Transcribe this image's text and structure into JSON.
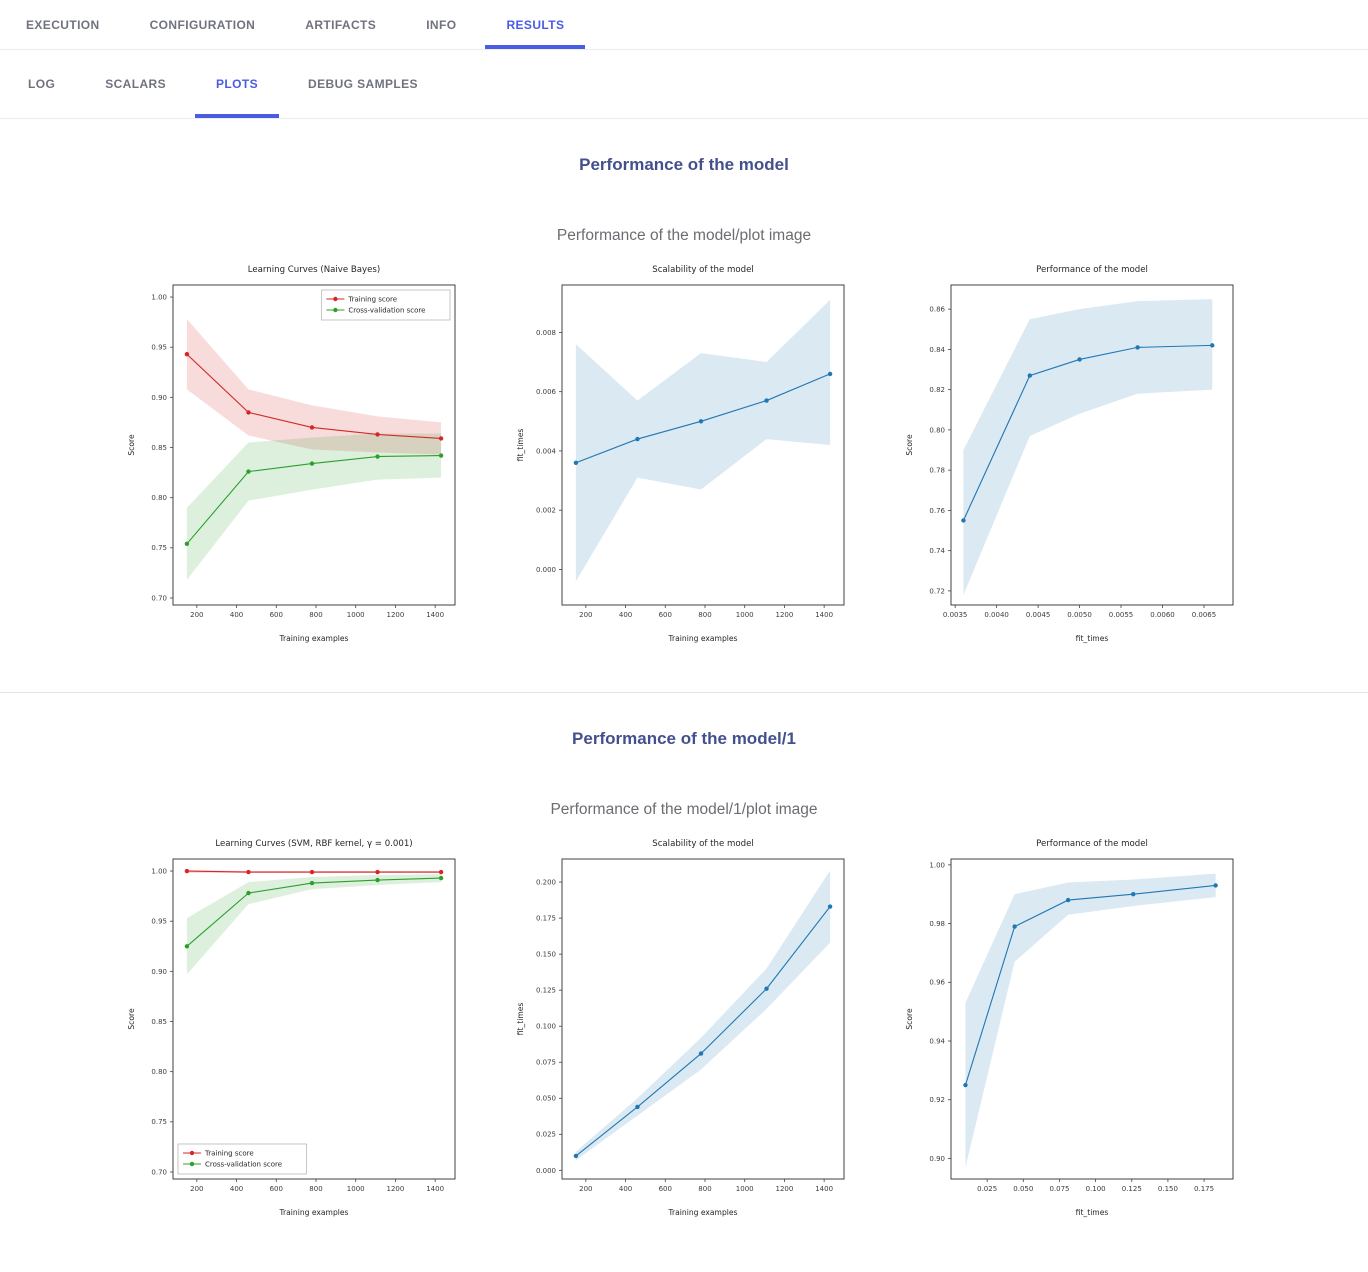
{
  "tabs_primary": [
    {
      "label": "EXECUTION",
      "active": false
    },
    {
      "label": "CONFIGURATION",
      "active": false
    },
    {
      "label": "ARTIFACTS",
      "active": false
    },
    {
      "label": "INFO",
      "active": false
    },
    {
      "label": "RESULTS",
      "active": true
    }
  ],
  "tabs_secondary": [
    {
      "label": "LOG",
      "active": false
    },
    {
      "label": "SCALARS",
      "active": false
    },
    {
      "label": "PLOTS",
      "active": true
    },
    {
      "label": "DEBUG SAMPLES",
      "active": false
    }
  ],
  "sections": [
    {
      "title": "Performance of the model",
      "subtitle": "Performance of the model/plot image"
    },
    {
      "title": "Performance of the model/1",
      "subtitle": "Performance of the model/1/plot image"
    }
  ],
  "colors": {
    "accent": "#4a5ce4",
    "heading": "#44508e",
    "training_score": "#d62728",
    "cross_validation_score": "#2ca02c",
    "single_series": "#1f77b4"
  },
  "chart_data": [
    {
      "type": "line",
      "title": "Learning Curves (Naive Bayes)",
      "xlabel": "Training examples",
      "ylabel": "Score",
      "xlim": [
        80,
        1500
      ],
      "ylim": [
        0.693,
        1.012
      ],
      "xticks": [
        "200",
        "400",
        "600",
        "800",
        "1000",
        "1200",
        "1400"
      ],
      "yticks": [
        "0.70",
        "0.75",
        "0.80",
        "0.85",
        "0.90",
        "0.95",
        "1.00"
      ],
      "legend": "top-right",
      "series": [
        {
          "name": "Training score",
          "color": "#d62728",
          "x": [
            150,
            460,
            780,
            1110,
            1430
          ],
          "y": [
            0.943,
            0.885,
            0.87,
            0.863,
            0.859
          ],
          "band_lower": [
            0.908,
            0.862,
            0.848,
            0.845,
            0.843
          ],
          "band_upper": [
            0.978,
            0.908,
            0.892,
            0.881,
            0.875
          ]
        },
        {
          "name": "Cross-validation score",
          "color": "#2ca02c",
          "x": [
            150,
            460,
            780,
            1110,
            1430
          ],
          "y": [
            0.754,
            0.826,
            0.834,
            0.841,
            0.842
          ],
          "band_lower": [
            0.718,
            0.797,
            0.808,
            0.818,
            0.82
          ],
          "band_upper": [
            0.79,
            0.855,
            0.86,
            0.864,
            0.864
          ]
        }
      ]
    },
    {
      "type": "line",
      "title": "Scalability of the model",
      "xlabel": "Training examples",
      "ylabel": "fit_times",
      "xlim": [
        80,
        1500
      ],
      "ylim": [
        -0.0012,
        0.0096
      ],
      "xticks": [
        "200",
        "400",
        "600",
        "800",
        "1000",
        "1200",
        "1400"
      ],
      "yticks": [
        "0.000",
        "0.002",
        "0.004",
        "0.006",
        "0.008"
      ],
      "legend": null,
      "series": [
        {
          "name": "fit_times",
          "color": "#1f77b4",
          "x": [
            150,
            460,
            780,
            1110,
            1430
          ],
          "y": [
            0.0036,
            0.0044,
            0.005,
            0.0057,
            0.0066
          ],
          "band_lower": [
            -0.0004,
            0.0031,
            0.0027,
            0.0044,
            0.0042
          ],
          "band_upper": [
            0.0076,
            0.0057,
            0.0073,
            0.007,
            0.0091
          ]
        }
      ]
    },
    {
      "type": "line",
      "title": "Performance of the model",
      "xlabel": "fit_times",
      "ylabel": "Score",
      "xlim": [
        0.00345,
        0.00685
      ],
      "ylim": [
        0.713,
        0.872
      ],
      "xticks": [
        "0.0035",
        "0.0040",
        "0.0045",
        "0.0050",
        "0.0055",
        "0.0060",
        "0.0065"
      ],
      "yticks": [
        "0.72",
        "0.74",
        "0.76",
        "0.78",
        "0.80",
        "0.82",
        "0.84",
        "0.86"
      ],
      "legend": null,
      "series": [
        {
          "name": "Score",
          "color": "#1f77b4",
          "x": [
            0.0036,
            0.0044,
            0.005,
            0.0057,
            0.0066
          ],
          "y": [
            0.755,
            0.827,
            0.835,
            0.841,
            0.842
          ],
          "band_lower": [
            0.718,
            0.797,
            0.808,
            0.818,
            0.82
          ],
          "band_upper": [
            0.79,
            0.855,
            0.86,
            0.864,
            0.865
          ]
        }
      ]
    },
    {
      "type": "line",
      "title": "Learning Curves (SVM, RBF kernel, γ = 0.001)",
      "xlabel": "Training examples",
      "ylabel": "Score",
      "xlim": [
        80,
        1500
      ],
      "ylim": [
        0.693,
        1.012
      ],
      "xticks": [
        "200",
        "400",
        "600",
        "800",
        "1000",
        "1200",
        "1400"
      ],
      "yticks": [
        "0.70",
        "0.75",
        "0.80",
        "0.85",
        "0.90",
        "0.95",
        "1.00"
      ],
      "legend": "bottom-left",
      "series": [
        {
          "name": "Training score",
          "color": "#d62728",
          "x": [
            150,
            460,
            780,
            1110,
            1430
          ],
          "y": [
            1.0,
            0.999,
            0.999,
            0.999,
            0.999
          ],
          "band_lower": [
            0.998,
            0.998,
            0.998,
            0.998,
            0.998
          ],
          "band_upper": [
            1.001,
            1.0,
            1.0,
            1.0,
            1.0
          ]
        },
        {
          "name": "Cross-validation score",
          "color": "#2ca02c",
          "x": [
            150,
            460,
            780,
            1110,
            1430
          ],
          "y": [
            0.925,
            0.978,
            0.988,
            0.991,
            0.993
          ],
          "band_lower": [
            0.897,
            0.967,
            0.982,
            0.986,
            0.989
          ],
          "band_upper": [
            0.953,
            0.989,
            0.994,
            0.996,
            0.997
          ]
        }
      ]
    },
    {
      "type": "line",
      "title": "Scalability of the model",
      "xlabel": "Training examples",
      "ylabel": "fit_times",
      "xlim": [
        80,
        1500
      ],
      "ylim": [
        -0.006,
        0.216
      ],
      "xticks": [
        "200",
        "400",
        "600",
        "800",
        "1000",
        "1200",
        "1400"
      ],
      "yticks": [
        "0.000",
        "0.025",
        "0.050",
        "0.075",
        "0.100",
        "0.125",
        "0.150",
        "0.175",
        "0.200"
      ],
      "legend": null,
      "series": [
        {
          "name": "fit_times",
          "color": "#1f77b4",
          "x": [
            150,
            460,
            780,
            1110,
            1430
          ],
          "y": [
            0.01,
            0.044,
            0.081,
            0.126,
            0.183
          ],
          "band_lower": [
            0.007,
            0.038,
            0.07,
            0.112,
            0.158
          ],
          "band_upper": [
            0.013,
            0.05,
            0.092,
            0.14,
            0.208
          ]
        }
      ]
    },
    {
      "type": "line",
      "title": "Performance of the model",
      "xlabel": "fit_times",
      "ylabel": "Score",
      "xlim": [
        0.0,
        0.195
      ],
      "ylim": [
        0.893,
        1.002
      ],
      "xticks": [
        "0.025",
        "0.050",
        "0.075",
        "0.100",
        "0.125",
        "0.150",
        "0.175"
      ],
      "yticks": [
        "0.90",
        "0.92",
        "0.94",
        "0.96",
        "0.98",
        "1.00"
      ],
      "legend": null,
      "series": [
        {
          "name": "Score",
          "color": "#1f77b4",
          "x": [
            0.01,
            0.044,
            0.081,
            0.126,
            0.183
          ],
          "y": [
            0.925,
            0.979,
            0.988,
            0.99,
            0.993
          ],
          "band_lower": [
            0.897,
            0.967,
            0.983,
            0.986,
            0.989
          ],
          "band_upper": [
            0.953,
            0.99,
            0.994,
            0.995,
            0.997
          ]
        }
      ]
    }
  ]
}
